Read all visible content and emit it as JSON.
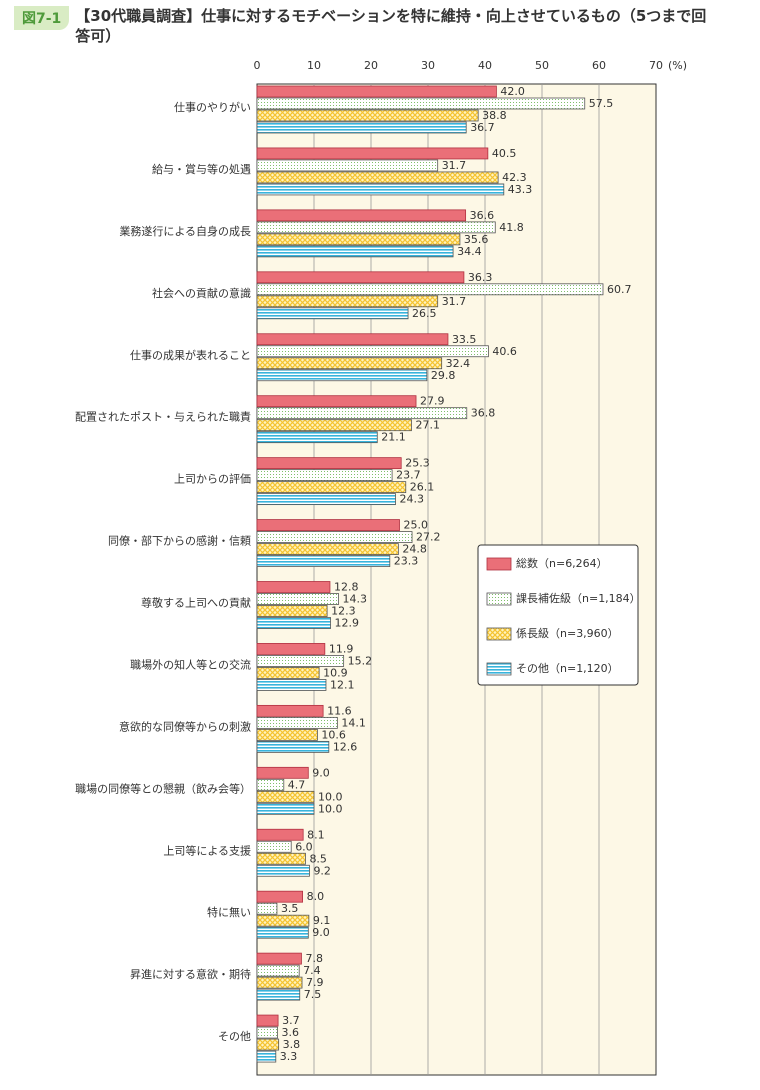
{
  "chart_data": {
    "type": "bar",
    "orientation": "horizontal",
    "figure_label": "図7-1",
    "title": "【30代職員調査】仕事に対するモチベーションを特に維持・向上させているもの（5つまで回答可）",
    "unit": "(%)",
    "categories": [
      "仕事のやりがい",
      "給与・賞与等の処遇",
      "業務遂行による自身の成長",
      "社会への貢献の意識",
      "仕事の成果が表れること",
      "配置されたポスト・与えられた職責",
      "上司からの評価",
      "同僚・部下からの感謝・信頼",
      "尊敬する上司への貢献",
      "職場外の知人等との交流",
      "意欲的な同僚等からの刺激",
      "職場の同僚等との懇親（飲み会等）",
      "上司等による支援",
      "特に無い",
      "昇進に対する意欲・期待",
      "その他"
    ],
    "series": [
      {
        "name": "総数（n=6,264）",
        "color": "#ea6f78",
        "pattern": "solid",
        "values": [
          42.0,
          40.5,
          36.6,
          36.3,
          33.5,
          27.9,
          25.3,
          25.0,
          12.8,
          11.9,
          11.6,
          9.0,
          8.1,
          8.0,
          7.8,
          3.7
        ],
        "value_labels": [
          "42.0",
          "40.5",
          "36.6",
          "36.3",
          "33.5",
          "27.9",
          "25.3",
          "25.0",
          "12.8",
          "11.9",
          "11.6",
          "9.0",
          "8.1",
          "8.0",
          "7.8",
          "3.7"
        ]
      },
      {
        "name": "課長補佐級（n=1,184）",
        "color": "#7fbf6a",
        "pattern": "dots",
        "values": [
          57.5,
          31.7,
          41.8,
          60.7,
          40.6,
          36.8,
          23.7,
          27.2,
          14.3,
          15.2,
          14.1,
          4.7,
          6.0,
          3.5,
          7.4,
          3.6
        ],
        "value_labels": [
          "57.5",
          "31.7",
          "41.8",
          "60.7",
          "40.6",
          "36.8",
          "23.7",
          "27.2",
          "14.3",
          "15.2",
          "14.1",
          "4.7",
          "6.0",
          "3.5",
          "7.4",
          "3.6"
        ]
      },
      {
        "name": "係長級（n=3,960）",
        "color": "#f5c330",
        "pattern": "crosshatch",
        "values": [
          38.8,
          42.3,
          35.6,
          31.7,
          32.4,
          27.1,
          26.1,
          24.8,
          12.3,
          10.9,
          10.6,
          10.0,
          8.5,
          9.1,
          7.9,
          3.8
        ],
        "value_labels": [
          "38.8",
          "42.3",
          "35.6",
          "31.7",
          "32.4",
          "27.1",
          "26.1",
          "24.8",
          "12.3",
          "10.9",
          "10.6",
          "10.0",
          "8.5",
          "9.1",
          "7.9",
          "3.8"
        ]
      },
      {
        "name": "その他（n=1,120）",
        "color": "#38b4dc",
        "pattern": "stripes",
        "values": [
          36.7,
          43.3,
          34.4,
          26.5,
          29.8,
          21.1,
          24.3,
          23.3,
          12.9,
          12.1,
          12.6,
          10.0,
          9.2,
          9.0,
          7.5,
          3.3
        ],
        "value_labels": [
          "36.7",
          "43.3",
          "34.4",
          "26.5",
          "29.8",
          "21.1",
          "24.3",
          "23.3",
          "12.9",
          "12.1",
          "12.6",
          "10.0",
          "9.2",
          "9.0",
          "7.5",
          "3.3"
        ]
      }
    ],
    "xlim": [
      0,
      70
    ],
    "xticks": [
      0,
      10,
      20,
      30,
      40,
      50,
      60,
      70
    ],
    "grid": true
  }
}
